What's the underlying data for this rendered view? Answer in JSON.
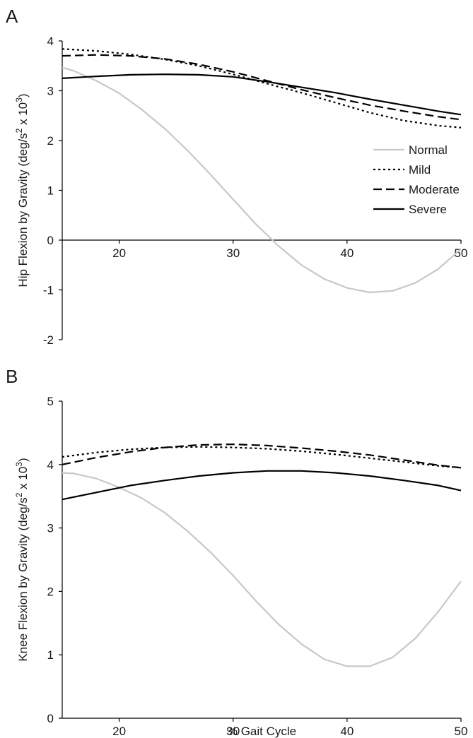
{
  "chart_data": [
    {
      "type": "line",
      "panel_label": "A",
      "ylabel": "Hip Flexion by Gravity (deg/s² x 10³)",
      "ylabel_parts": {
        "main": "Hip Flexion by Gravity (deg/s",
        "sup1": "2",
        "mid": " x 10",
        "sup2": "3",
        "end": ")"
      },
      "xlabel": "",
      "xlim": [
        15,
        50
      ],
      "ylim": [
        -2,
        4
      ],
      "x_ticks": [
        20,
        30,
        40,
        50
      ],
      "y_ticks": [
        -2,
        -1,
        0,
        1,
        2,
        3,
        4
      ],
      "x_axis_at_zero": true,
      "legend": {
        "placement": "right",
        "entries": [
          {
            "name": "Normal",
            "color": "#c8c8c8",
            "dash": "solid"
          },
          {
            "name": "Mild",
            "color": "#000000",
            "dash": "dotted"
          },
          {
            "name": "Moderate",
            "color": "#000000",
            "dash": "dashed"
          },
          {
            "name": "Severe",
            "color": "#000000",
            "dash": "solid"
          }
        ]
      },
      "series": [
        {
          "name": "Normal",
          "color": "#c8c8c8",
          "dash": "solid",
          "x": [
            15,
            16,
            18,
            20,
            22,
            24,
            26,
            28,
            30,
            32,
            34,
            36,
            38,
            40,
            42,
            44,
            46,
            48,
            50
          ],
          "y": [
            3.47,
            3.4,
            3.2,
            2.95,
            2.62,
            2.24,
            1.8,
            1.32,
            0.82,
            0.32,
            -0.12,
            -0.5,
            -0.78,
            -0.96,
            -1.05,
            -1.02,
            -0.86,
            -0.58,
            -0.18
          ]
        },
        {
          "name": "Mild",
          "color": "#000000",
          "dash": "dotted",
          "x": [
            15,
            18,
            21,
            24,
            27,
            30,
            33,
            36,
            39,
            42,
            45,
            48,
            50
          ],
          "y": [
            3.84,
            3.8,
            3.73,
            3.63,
            3.5,
            3.33,
            3.14,
            2.96,
            2.76,
            2.56,
            2.4,
            2.3,
            2.26
          ]
        },
        {
          "name": "Moderate",
          "color": "#000000",
          "dash": "dashed",
          "x": [
            15,
            18,
            21,
            24,
            27,
            30,
            33,
            36,
            39,
            42,
            45,
            48,
            50
          ],
          "y": [
            3.7,
            3.72,
            3.7,
            3.64,
            3.53,
            3.38,
            3.2,
            3.02,
            2.86,
            2.71,
            2.59,
            2.48,
            2.42
          ]
        },
        {
          "name": "Severe",
          "color": "#000000",
          "dash": "solid",
          "x": [
            15,
            18,
            21,
            24,
            27,
            30,
            33,
            36,
            39,
            42,
            45,
            48,
            50
          ],
          "y": [
            3.25,
            3.29,
            3.32,
            3.33,
            3.32,
            3.28,
            3.18,
            3.07,
            2.96,
            2.83,
            2.71,
            2.59,
            2.52
          ]
        }
      ]
    },
    {
      "type": "line",
      "panel_label": "B",
      "ylabel": "Knee Flexion by Gravity (deg/s² x 10³)",
      "ylabel_parts": {
        "main": "Knee Flexion by Gravity (deg/s",
        "sup1": "2",
        "mid": " x 10",
        "sup2": "3",
        "end": ")"
      },
      "xlabel": "% Gait Cycle",
      "xlim": [
        15,
        50
      ],
      "ylim": [
        0,
        5
      ],
      "x_ticks": [
        20,
        30,
        40,
        50
      ],
      "y_ticks": [
        0,
        1,
        2,
        3,
        4,
        5
      ],
      "x_axis_at_zero": false,
      "series": [
        {
          "name": "Normal",
          "color": "#c8c8c8",
          "dash": "solid",
          "x": [
            15,
            16,
            18,
            20,
            22,
            24,
            26,
            28,
            30,
            32,
            34,
            36,
            38,
            40,
            42,
            44,
            46,
            48,
            50
          ],
          "y": [
            3.87,
            3.86,
            3.78,
            3.64,
            3.47,
            3.24,
            2.95,
            2.62,
            2.25,
            1.85,
            1.48,
            1.17,
            0.93,
            0.82,
            0.82,
            0.96,
            1.26,
            1.68,
            2.16
          ]
        },
        {
          "name": "Mild",
          "color": "#000000",
          "dash": "dotted",
          "x": [
            15,
            18,
            21,
            24,
            27,
            30,
            33,
            36,
            39,
            42,
            45,
            48,
            50
          ],
          "y": [
            4.12,
            4.19,
            4.24,
            4.27,
            4.28,
            4.27,
            4.25,
            4.21,
            4.16,
            4.1,
            4.04,
            3.98,
            3.95
          ]
        },
        {
          "name": "Moderate",
          "color": "#000000",
          "dash": "dashed",
          "x": [
            15,
            18,
            21,
            24,
            27,
            30,
            33,
            36,
            39,
            42,
            45,
            48,
            50
          ],
          "y": [
            4.0,
            4.11,
            4.2,
            4.27,
            4.31,
            4.32,
            4.3,
            4.26,
            4.21,
            4.15,
            4.07,
            3.99,
            3.95
          ]
        },
        {
          "name": "Severe",
          "color": "#000000",
          "dash": "solid",
          "x": [
            15,
            18,
            21,
            24,
            27,
            30,
            33,
            36,
            39,
            42,
            45,
            48,
            50
          ],
          "y": [
            3.45,
            3.56,
            3.67,
            3.75,
            3.82,
            3.87,
            3.9,
            3.9,
            3.87,
            3.82,
            3.75,
            3.67,
            3.59
          ]
        }
      ]
    }
  ]
}
